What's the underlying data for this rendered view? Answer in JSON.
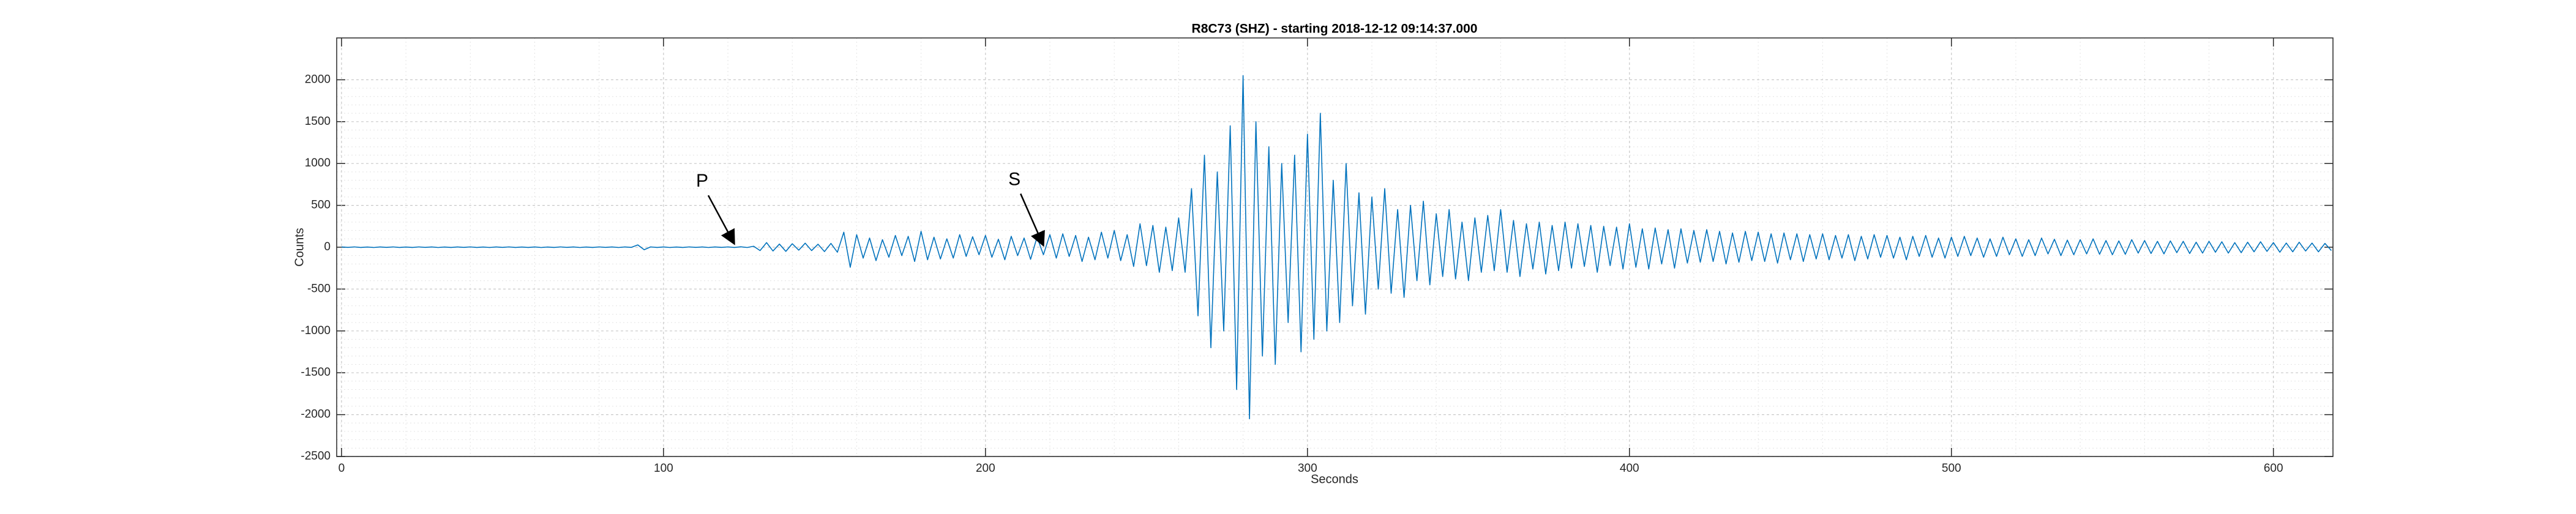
{
  "chart_data": {
    "type": "line",
    "title": "R8C73 (SHZ) - starting 2018-12-12 09:14:37.000",
    "x_label": "Seconds",
    "y_label": "Counts",
    "xlim": [
      -1.5,
      618.5
    ],
    "ylim": [
      -2500,
      2500
    ],
    "xticks": [
      0,
      100,
      200,
      300,
      400,
      500,
      600
    ],
    "yticks": [
      -2500,
      -2000,
      -1500,
      -1000,
      -500,
      0,
      500,
      1000,
      1500,
      2000
    ],
    "grid": true,
    "minor_grid": true,
    "x": [
      0,
      2,
      4,
      6,
      8,
      10,
      12,
      14,
      16,
      18,
      20,
      22,
      24,
      26,
      28,
      30,
      32,
      34,
      36,
      38,
      40,
      42,
      44,
      46,
      48,
      50,
      52,
      54,
      56,
      58,
      60,
      62,
      64,
      66,
      68,
      70,
      72,
      74,
      76,
      78,
      80,
      82,
      84,
      86,
      88,
      90,
      92,
      94,
      96,
      98,
      100,
      102,
      104,
      106,
      108,
      110,
      112,
      114,
      116,
      118,
      120,
      122,
      124,
      126,
      128,
      130,
      132,
      134,
      136,
      138,
      140,
      142,
      144,
      146,
      148,
      150,
      152,
      154,
      156,
      158,
      160,
      162,
      164,
      166,
      168,
      170,
      172,
      174,
      176,
      178,
      180,
      182,
      184,
      186,
      188,
      190,
      192,
      194,
      196,
      198,
      200,
      202,
      204,
      206,
      208,
      210,
      212,
      214,
      216,
      218,
      220,
      222,
      224,
      226,
      228,
      230,
      232,
      234,
      236,
      238,
      240,
      242,
      244,
      246,
      248,
      250,
      252,
      254,
      256,
      258,
      260,
      262,
      264,
      266,
      268,
      270,
      272,
      274,
      276,
      278,
      280,
      282,
      284,
      286,
      288,
      290,
      292,
      294,
      296,
      298,
      300,
      302,
      304,
      306,
      308,
      310,
      312,
      314,
      316,
      318,
      320,
      322,
      324,
      326,
      328,
      330,
      332,
      334,
      336,
      338,
      340,
      342,
      344,
      346,
      348,
      350,
      352,
      354,
      356,
      358,
      360,
      362,
      364,
      366,
      368,
      370,
      372,
      374,
      376,
      378,
      380,
      382,
      384,
      386,
      388,
      390,
      392,
      394,
      396,
      398,
      400,
      402,
      404,
      406,
      408,
      410,
      412,
      414,
      416,
      418,
      420,
      422,
      424,
      426,
      428,
      430,
      432,
      434,
      436,
      438,
      440,
      442,
      444,
      446,
      448,
      450,
      452,
      454,
      456,
      458,
      460,
      462,
      464,
      466,
      468,
      470,
      472,
      474,
      476,
      478,
      480,
      482,
      484,
      486,
      488,
      490,
      492,
      494,
      496,
      498,
      500,
      502,
      504,
      506,
      508,
      510,
      512,
      514,
      516,
      518,
      520,
      522,
      524,
      526,
      528,
      530,
      532,
      534,
      536,
      538,
      540,
      542,
      544,
      546,
      548,
      550,
      552,
      554,
      556,
      558,
      560,
      562,
      564,
      566,
      568,
      570,
      572,
      574,
      576,
      578,
      580,
      582,
      584,
      586,
      588,
      590,
      592,
      594,
      596,
      598,
      600,
      602,
      604,
      606,
      608,
      610,
      612,
      614,
      616,
      618
    ],
    "series": [
      {
        "name": "SHZ",
        "color": "#0072bd",
        "values": [
          3,
          -2,
          4,
          -3,
          2,
          -4,
          3,
          -2,
          4,
          -3,
          2,
          -3,
          4,
          -2,
          3,
          -4,
          2,
          -3,
          3,
          -2,
          4,
          -3,
          2,
          -4,
          3,
          -2,
          4,
          -3,
          2,
          -3,
          3,
          -4,
          2,
          -3,
          4,
          -2,
          3,
          -4,
          2,
          -3,
          4,
          -2,
          3,
          -4,
          3,
          -2,
          28,
          -30,
          4,
          -3,
          3,
          -4,
          2,
          -3,
          4,
          -2,
          3,
          -4,
          3,
          -2,
          4,
          -3,
          5,
          -4,
          12,
          -40,
          55,
          -45,
          38,
          -50,
          42,
          -35,
          48,
          -40,
          36,
          -52,
          45,
          -60,
          180,
          -240,
          150,
          -130,
          110,
          -160,
          90,
          -120,
          140,
          -100,
          130,
          -170,
          190,
          -150,
          120,
          -140,
          100,
          -130,
          150,
          -110,
          125,
          -90,
          140,
          -120,
          95,
          -150,
          130,
          -100,
          110,
          -145,
          120,
          -90,
          150,
          -130,
          160,
          -110,
          140,
          -170,
          120,
          -150,
          180,
          -130,
          200,
          -160,
          150,
          -230,
          280,
          -220,
          260,
          -300,
          240,
          -280,
          350,
          -300,
          700,
          -820,
          1100,
          -1200,
          900,
          -1000,
          1450,
          -1700,
          2050,
          -2050,
          1500,
          -1300,
          1200,
          -1400,
          1000,
          -900,
          1100,
          -1250,
          1350,
          -1100,
          1600,
          -1000,
          800,
          -900,
          1000,
          -700,
          650,
          -800,
          600,
          -500,
          700,
          -550,
          450,
          -600,
          500,
          -400,
          550,
          -450,
          400,
          -350,
          450,
          -380,
          300,
          -400,
          350,
          -300,
          380,
          -280,
          450,
          -300,
          320,
          -350,
          280,
          -260,
          300,
          -320,
          260,
          -280,
          300,
          -250,
          280,
          -230,
          260,
          -300,
          250,
          -220,
          240,
          -260,
          280,
          -240,
          220,
          -260,
          230,
          -200,
          210,
          -250,
          220,
          -190,
          200,
          -180,
          210,
          -170,
          190,
          -200,
          170,
          -180,
          190,
          -160,
          180,
          -170,
          160,
          -190,
          170,
          -150,
          160,
          -170,
          150,
          -140,
          160,
          -150,
          140,
          -130,
          150,
          -160,
          130,
          -140,
          150,
          -120,
          140,
          -130,
          120,
          -150,
          130,
          -110,
          140,
          -120,
          110,
          -130,
          120,
          -110,
          130,
          -100,
          110,
          -120,
          100,
          -110,
          120,
          -90,
          100,
          -110,
          90,
          -100,
          110,
          -80,
          95,
          -100,
          85,
          -90,
          90,
          -80,
          100,
          -85,
          80,
          -90,
          75,
          -85,
          90,
          -70,
          80,
          -75,
          70,
          -80,
          75,
          -65,
          70,
          -75,
          60,
          -70,
          70,
          -60,
          65,
          -70,
          55,
          -65,
          60,
          -55,
          65,
          -50,
          55,
          -60,
          50,
          -55,
          60,
          -45,
          50,
          -55,
          45,
          -40
        ]
      }
    ],
    "annotations": [
      {
        "text": "P",
        "x": 112,
        "y": 780,
        "arrow_x": 122,
        "arrow_y": 40
      },
      {
        "text": "S",
        "x": 209,
        "y": 800,
        "arrow_x": 218,
        "arrow_y": 20
      }
    ]
  }
}
